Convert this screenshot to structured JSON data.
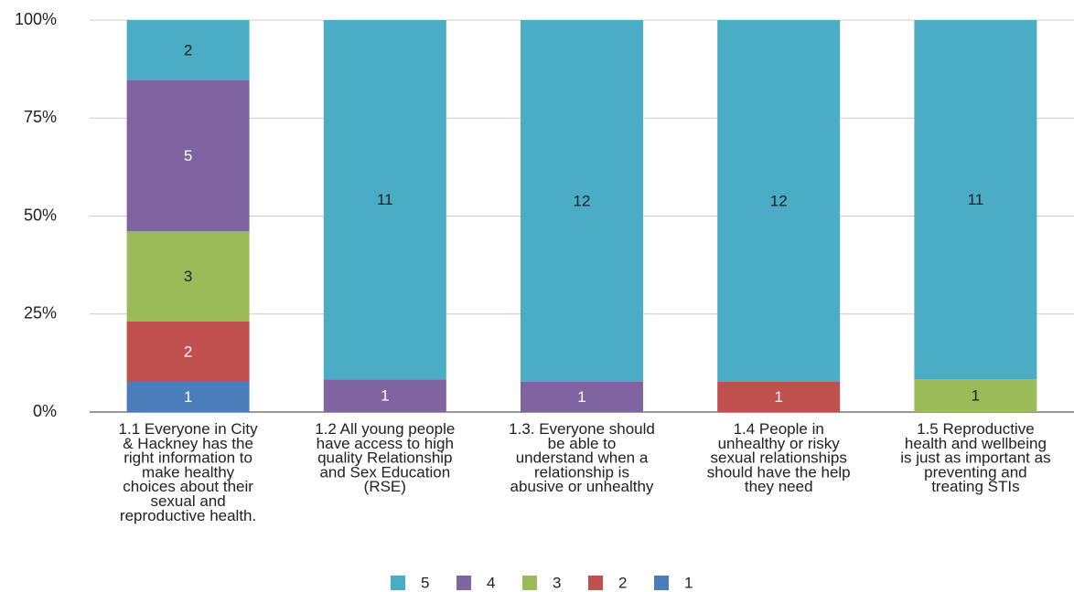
{
  "chart_data": {
    "type": "bar",
    "stacked": true,
    "normalized": true,
    "categories": [
      "1.1 Everyone in City & Hackney has the right information to make healthy choices about their sexual and reproductive health.",
      "1.2 All young people have access to high quality Relationship and Sex Education (RSE)",
      "1.3. Everyone should be able to understand when a relationship is abusive or unhealthy",
      "1.4 People in unhealthy or risky sexual relationships should have the help they need",
      "1.5 Reproductive health and wellbeing is just as important as preventing and treating STIs"
    ],
    "category_lines": [
      [
        "1.1 Everyone in City",
        "& Hackney has the",
        "right information to",
        "make healthy",
        "choices about their",
        "sexual and",
        "reproductive health."
      ],
      [
        "1.2 All young people",
        "have access to high",
        "quality Relationship",
        "and Sex Education",
        "(RSE)"
      ],
      [
        "1.3. Everyone should",
        "be able to",
        "understand when a",
        "relationship is",
        "abusive or unhealthy"
      ],
      [
        "1.4 People in",
        "unhealthy or risky",
        "sexual relationships",
        "should have the help",
        "they need"
      ],
      [
        "1.5 Reproductive",
        "health and wellbeing",
        "is just as important as",
        "preventing and",
        "treating STIs"
      ]
    ],
    "series": [
      {
        "name": "1",
        "color": "#4a7ebb",
        "values": [
          1,
          0,
          0,
          0,
          0
        ]
      },
      {
        "name": "2",
        "color": "#c0504d",
        "values": [
          2,
          0,
          0,
          1,
          0
        ]
      },
      {
        "name": "3",
        "color": "#9bbb59",
        "values": [
          3,
          0,
          0,
          0,
          1
        ]
      },
      {
        "name": "4",
        "color": "#8064a2",
        "values": [
          5,
          1,
          1,
          0,
          0
        ]
      },
      {
        "name": "5",
        "color": "#4bacc6",
        "values": [
          2,
          11,
          12,
          12,
          11
        ]
      }
    ],
    "legend_order": [
      "5",
      "4",
      "3",
      "2",
      "1"
    ],
    "yticks": [
      "0%",
      "25%",
      "50%",
      "75%",
      "100%"
    ],
    "ylim": [
      0,
      100
    ],
    "grid": true,
    "legend_position": "bottom"
  }
}
